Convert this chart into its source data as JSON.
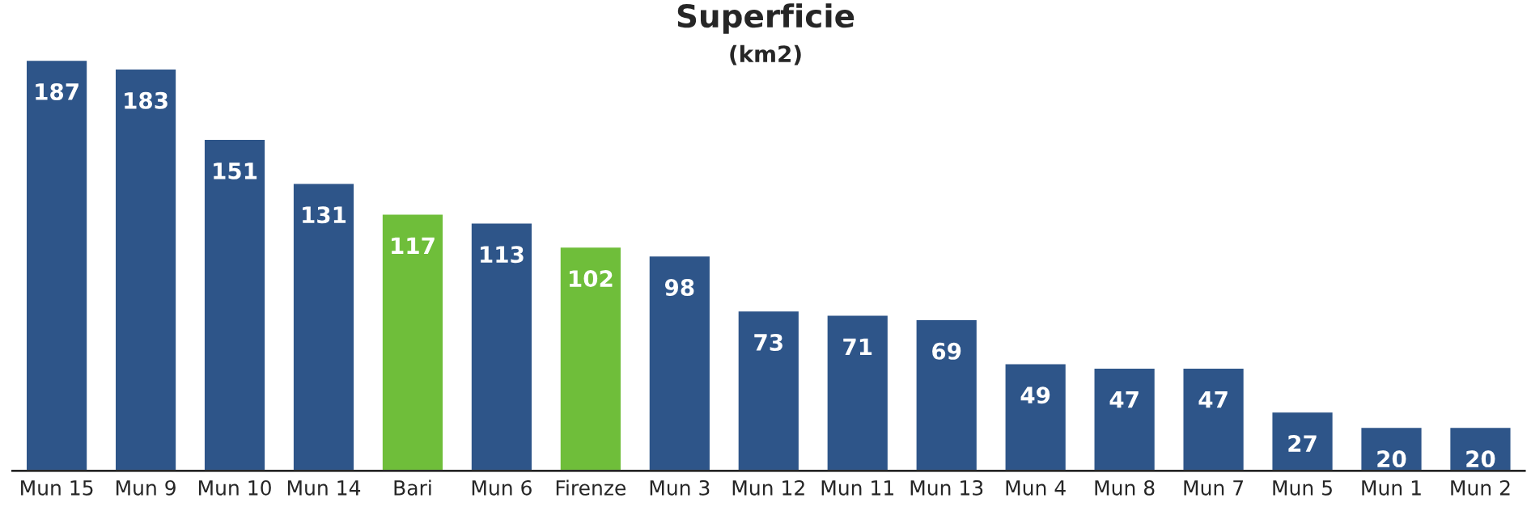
{
  "chart_data": {
    "type": "bar",
    "title": "Superficie",
    "subtitle": "(km2)",
    "categories": [
      "Mun 15",
      "Mun 9",
      "Mun 10",
      "Mun 14",
      "Bari",
      "Mun 6",
      "Firenze",
      "Mun 3",
      "Mun 12",
      "Mun 11",
      "Mun 13",
      "Mun 4",
      "Mun 8",
      "Mun 7",
      "Mun 5",
      "Mun 1",
      "Mun 2"
    ],
    "values": [
      187,
      183,
      151,
      131,
      117,
      113,
      102,
      98,
      73,
      71,
      69,
      49,
      47,
      47,
      27,
      20,
      20
    ],
    "colors": [
      "#2e5589",
      "#2e5589",
      "#2e5589",
      "#2e5589",
      "#6fbe3a",
      "#2e5589",
      "#6fbe3a",
      "#2e5589",
      "#2e5589",
      "#2e5589",
      "#2e5589",
      "#2e5589",
      "#2e5589",
      "#2e5589",
      "#2e5589",
      "#2e5589",
      "#2e5589"
    ],
    "data_labels": true,
    "grid": false,
    "legend": false
  }
}
